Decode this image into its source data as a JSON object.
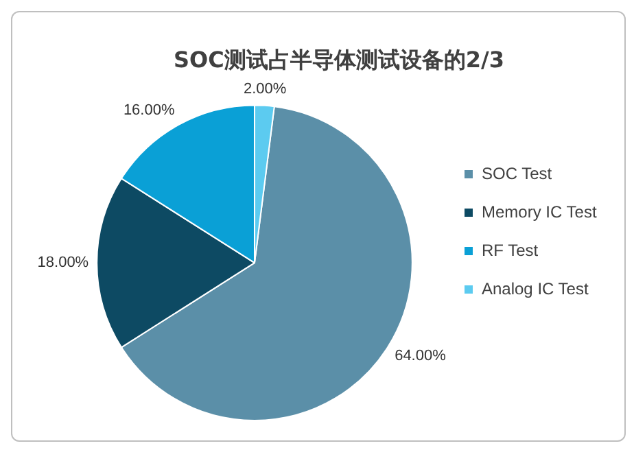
{
  "chart_data": {
    "type": "pie",
    "title": "SOC测试占半导体测试设备的2/3",
    "categories": [
      "SOC Test",
      "Memory IC Test",
      "RF Test",
      "Analog IC Test"
    ],
    "values": [
      64,
      18,
      16,
      2
    ],
    "colors": [
      "#5b8fa8",
      "#0d4a63",
      "#0aa0d6",
      "#5ccbf0"
    ],
    "value_labels": [
      "64.00%",
      "18.00%",
      "16.00%",
      "2.00%"
    ],
    "legend": "right"
  }
}
